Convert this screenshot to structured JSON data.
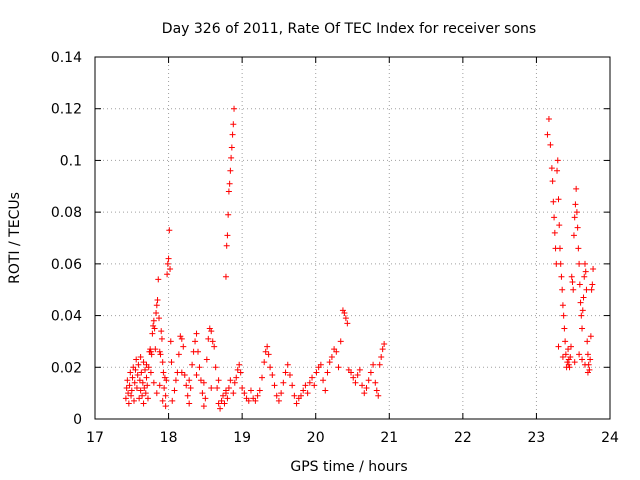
{
  "chart_data": {
    "type": "scatter",
    "title": "Day 326 of 2011, Rate Of TEC Index for receiver sons",
    "xlabel": "GPS time / hours",
    "ylabel": "ROTI / TECUs",
    "xlim": [
      17,
      24
    ],
    "ylim": [
      0,
      0.14
    ],
    "xticks": [
      "17",
      "18",
      "19",
      "20",
      "21",
      "22",
      "23",
      "24"
    ],
    "yticks": [
      "0",
      "0.02",
      "0.04",
      "0.06",
      "0.08",
      "0.1",
      "0.12",
      "0.14"
    ],
    "grid": true,
    "marker": "+",
    "color": "#ff0000",
    "series": [
      {
        "name": "ROTI",
        "points": [
          [
            17.42,
            0.008
          ],
          [
            17.43,
            0.012
          ],
          [
            17.44,
            0.015
          ],
          [
            17.45,
            0.01
          ],
          [
            17.46,
            0.006
          ],
          [
            17.47,
            0.013
          ],
          [
            17.48,
            0.018
          ],
          [
            17.49,
            0.009
          ],
          [
            17.5,
            0.011
          ],
          [
            17.51,
            0.016
          ],
          [
            17.52,
            0.02
          ],
          [
            17.53,
            0.007
          ],
          [
            17.54,
            0.014
          ],
          [
            17.55,
            0.019
          ],
          [
            17.56,
            0.023
          ],
          [
            17.57,
            0.012
          ],
          [
            17.58,
            0.017
          ],
          [
            17.59,
            0.021
          ],
          [
            17.6,
            0.008
          ],
          [
            17.61,
            0.015
          ],
          [
            17.62,
            0.011
          ],
          [
            17.63,
            0.018
          ],
          [
            17.64,
            0.009
          ],
          [
            17.65,
            0.014
          ],
          [
            17.66,
            0.006
          ],
          [
            17.67,
            0.012
          ],
          [
            17.68,
            0.019
          ],
          [
            17.69,
            0.01
          ],
          [
            17.7,
            0.016
          ],
          [
            17.71,
            0.013
          ],
          [
            17.72,
            0.008
          ],
          [
            17.73,
            0.02
          ],
          [
            17.74,
            0.026
          ],
          [
            17.75,
            0.027
          ],
          [
            17.76,
            0.026
          ],
          [
            17.77,
            0.025
          ],
          [
            17.78,
            0.033
          ],
          [
            17.79,
            0.036
          ],
          [
            17.8,
            0.038
          ],
          [
            17.81,
            0.035
          ],
          [
            17.82,
            0.027
          ],
          [
            17.83,
            0.041
          ],
          [
            17.84,
            0.044
          ],
          [
            17.85,
            0.046
          ],
          [
            17.86,
            0.054
          ],
          [
            17.87,
            0.039
          ],
          [
            17.88,
            0.026
          ],
          [
            17.89,
            0.025
          ],
          [
            17.9,
            0.034
          ],
          [
            17.91,
            0.031
          ],
          [
            17.92,
            0.022
          ],
          [
            17.93,
            0.018
          ],
          [
            17.94,
            0.012
          ],
          [
            17.95,
            0.016
          ],
          [
            17.96,
            0.009
          ],
          [
            17.97,
            0.015
          ],
          [
            17.98,
            0.056
          ],
          [
            17.99,
            0.06
          ],
          [
            18.0,
            0.062
          ],
          [
            18.01,
            0.073
          ],
          [
            18.02,
            0.058
          ],
          [
            18.03,
            0.03
          ],
          [
            18.04,
            0.022
          ],
          [
            17.62,
            0.024
          ],
          [
            17.66,
            0.022
          ],
          [
            17.7,
            0.021
          ],
          [
            17.76,
            0.018
          ],
          [
            17.8,
            0.014
          ],
          [
            17.84,
            0.01
          ],
          [
            17.88,
            0.013
          ],
          [
            17.92,
            0.007
          ],
          [
            17.96,
            0.005
          ],
          [
            18.05,
            0.007
          ],
          [
            18.08,
            0.011
          ],
          [
            18.1,
            0.015
          ],
          [
            18.12,
            0.018
          ],
          [
            18.14,
            0.025
          ],
          [
            18.16,
            0.032
          ],
          [
            18.18,
            0.031
          ],
          [
            18.2,
            0.028
          ],
          [
            18.22,
            0.017
          ],
          [
            18.24,
            0.013
          ],
          [
            18.26,
            0.009
          ],
          [
            18.28,
            0.006
          ],
          [
            18.3,
            0.012
          ],
          [
            18.32,
            0.021
          ],
          [
            18.34,
            0.026
          ],
          [
            18.36,
            0.03
          ],
          [
            18.38,
            0.033
          ],
          [
            18.4,
            0.026
          ],
          [
            18.42,
            0.02
          ],
          [
            18.44,
            0.015
          ],
          [
            18.46,
            0.01
          ],
          [
            18.48,
            0.005
          ],
          [
            18.5,
            0.008
          ],
          [
            18.52,
            0.023
          ],
          [
            18.54,
            0.031
          ],
          [
            18.56,
            0.035
          ],
          [
            18.58,
            0.034
          ],
          [
            18.6,
            0.03
          ],
          [
            18.62,
            0.028
          ],
          [
            18.64,
            0.02
          ],
          [
            18.66,
            0.012
          ],
          [
            18.68,
            0.006
          ],
          [
            18.7,
            0.004
          ],
          [
            18.72,
            0.007
          ],
          [
            18.74,
            0.009
          ],
          [
            18.76,
            0.006
          ],
          [
            18.78,
            0.01
          ],
          [
            18.8,
            0.008
          ],
          [
            18.82,
            0.012
          ],
          [
            18.84,
            0.015
          ],
          [
            18.18,
            0.018
          ],
          [
            18.28,
            0.015
          ],
          [
            18.38,
            0.017
          ],
          [
            18.48,
            0.014
          ],
          [
            18.58,
            0.012
          ],
          [
            18.68,
            0.015
          ],
          [
            18.78,
            0.011
          ],
          [
            18.88,
            0.01
          ],
          [
            18.78,
            0.055
          ],
          [
            18.79,
            0.067
          ],
          [
            18.8,
            0.071
          ],
          [
            18.81,
            0.079
          ],
          [
            18.82,
            0.088
          ],
          [
            18.83,
            0.091
          ],
          [
            18.84,
            0.096
          ],
          [
            18.85,
            0.101
          ],
          [
            18.86,
            0.105
          ],
          [
            18.87,
            0.11
          ],
          [
            18.88,
            0.114
          ],
          [
            18.89,
            0.12
          ],
          [
            18.9,
            0.014
          ],
          [
            18.92,
            0.016
          ],
          [
            18.94,
            0.019
          ],
          [
            18.96,
            0.021
          ],
          [
            18.98,
            0.018
          ],
          [
            19.0,
            0.012
          ],
          [
            19.03,
            0.01
          ],
          [
            19.06,
            0.008
          ],
          [
            19.09,
            0.007
          ],
          [
            19.12,
            0.011
          ],
          [
            19.15,
            0.008
          ],
          [
            19.18,
            0.007
          ],
          [
            19.21,
            0.009
          ],
          [
            19.24,
            0.011
          ],
          [
            19.27,
            0.016
          ],
          [
            19.3,
            0.022
          ],
          [
            19.32,
            0.026
          ],
          [
            19.34,
            0.028
          ],
          [
            19.36,
            0.025
          ],
          [
            19.38,
            0.02
          ],
          [
            19.41,
            0.017
          ],
          [
            19.44,
            0.013
          ],
          [
            19.47,
            0.009
          ],
          [
            19.5,
            0.007
          ],
          [
            19.53,
            0.01
          ],
          [
            19.56,
            0.014
          ],
          [
            19.59,
            0.018
          ],
          [
            19.62,
            0.021
          ],
          [
            19.65,
            0.017
          ],
          [
            19.68,
            0.013
          ],
          [
            19.71,
            0.009
          ],
          [
            19.74,
            0.006
          ],
          [
            19.77,
            0.008
          ],
          [
            19.8,
            0.009
          ],
          [
            19.83,
            0.011
          ],
          [
            19.86,
            0.013
          ],
          [
            19.89,
            0.01
          ],
          [
            19.92,
            0.014
          ],
          [
            19.95,
            0.016
          ],
          [
            19.98,
            0.013
          ],
          [
            20.01,
            0.018
          ],
          [
            20.04,
            0.02
          ],
          [
            20.07,
            0.021
          ],
          [
            20.1,
            0.015
          ],
          [
            20.13,
            0.011
          ],
          [
            20.16,
            0.018
          ],
          [
            20.19,
            0.022
          ],
          [
            20.22,
            0.024
          ],
          [
            20.25,
            0.027
          ],
          [
            20.28,
            0.026
          ],
          [
            20.31,
            0.02
          ],
          [
            20.34,
            0.03
          ],
          [
            20.37,
            0.042
          ],
          [
            20.39,
            0.041
          ],
          [
            20.41,
            0.039
          ],
          [
            20.43,
            0.037
          ],
          [
            20.45,
            0.019
          ],
          [
            20.48,
            0.018
          ],
          [
            20.51,
            0.016
          ],
          [
            20.54,
            0.014
          ],
          [
            20.57,
            0.017
          ],
          [
            20.6,
            0.019
          ],
          [
            20.63,
            0.013
          ],
          [
            20.66,
            0.01
          ],
          [
            20.69,
            0.012
          ],
          [
            20.72,
            0.015
          ],
          [
            20.75,
            0.018
          ],
          [
            20.78,
            0.021
          ],
          [
            20.81,
            0.014
          ],
          [
            20.83,
            0.011
          ],
          [
            20.85,
            0.009
          ],
          [
            20.87,
            0.021
          ],
          [
            20.89,
            0.024
          ],
          [
            20.91,
            0.027
          ],
          [
            20.93,
            0.029
          ],
          [
            23.15,
            0.11
          ],
          [
            23.17,
            0.116
          ],
          [
            23.19,
            0.106
          ],
          [
            23.21,
            0.097
          ],
          [
            23.22,
            0.092
          ],
          [
            23.23,
            0.084
          ],
          [
            23.24,
            0.078
          ],
          [
            23.25,
            0.072
          ],
          [
            23.26,
            0.066
          ],
          [
            23.27,
            0.06
          ],
          [
            23.28,
            0.096
          ],
          [
            23.29,
            0.1
          ],
          [
            23.3,
            0.085
          ],
          [
            23.31,
            0.075
          ],
          [
            23.32,
            0.066
          ],
          [
            23.33,
            0.06
          ],
          [
            23.34,
            0.055
          ],
          [
            23.35,
            0.05
          ],
          [
            23.36,
            0.044
          ],
          [
            23.37,
            0.04
          ],
          [
            23.38,
            0.035
          ],
          [
            23.39,
            0.03
          ],
          [
            23.4,
            0.025
          ],
          [
            23.41,
            0.02
          ],
          [
            23.42,
            0.022
          ],
          [
            23.43,
            0.027
          ],
          [
            23.44,
            0.021
          ],
          [
            23.45,
            0.02
          ],
          [
            23.46,
            0.024
          ],
          [
            23.47,
            0.028
          ],
          [
            23.48,
            0.055
          ],
          [
            23.49,
            0.053
          ],
          [
            23.5,
            0.05
          ],
          [
            23.51,
            0.071
          ],
          [
            23.52,
            0.078
          ],
          [
            23.53,
            0.083
          ],
          [
            23.54,
            0.089
          ],
          [
            23.55,
            0.08
          ],
          [
            23.56,
            0.074
          ],
          [
            23.57,
            0.066
          ],
          [
            23.58,
            0.06
          ],
          [
            23.59,
            0.052
          ],
          [
            23.6,
            0.045
          ],
          [
            23.61,
            0.04
          ],
          [
            23.62,
            0.035
          ],
          [
            23.63,
            0.042
          ],
          [
            23.64,
            0.047
          ],
          [
            23.65,
            0.055
          ],
          [
            23.66,
            0.06
          ],
          [
            23.67,
            0.057
          ],
          [
            23.68,
            0.05
          ],
          [
            23.69,
            0.03
          ],
          [
            23.7,
            0.025
          ],
          [
            23.71,
            0.021
          ],
          [
            23.72,
            0.019
          ],
          [
            23.73,
            0.023
          ],
          [
            23.74,
            0.032
          ],
          [
            23.75,
            0.05
          ],
          [
            23.76,
            0.052
          ],
          [
            23.77,
            0.058
          ],
          [
            23.3,
            0.028
          ],
          [
            23.36,
            0.024
          ],
          [
            23.44,
            0.023
          ],
          [
            23.52,
            0.022
          ],
          [
            23.58,
            0.025
          ],
          [
            23.62,
            0.023
          ],
          [
            23.66,
            0.021
          ],
          [
            23.7,
            0.018
          ]
        ]
      }
    ]
  }
}
